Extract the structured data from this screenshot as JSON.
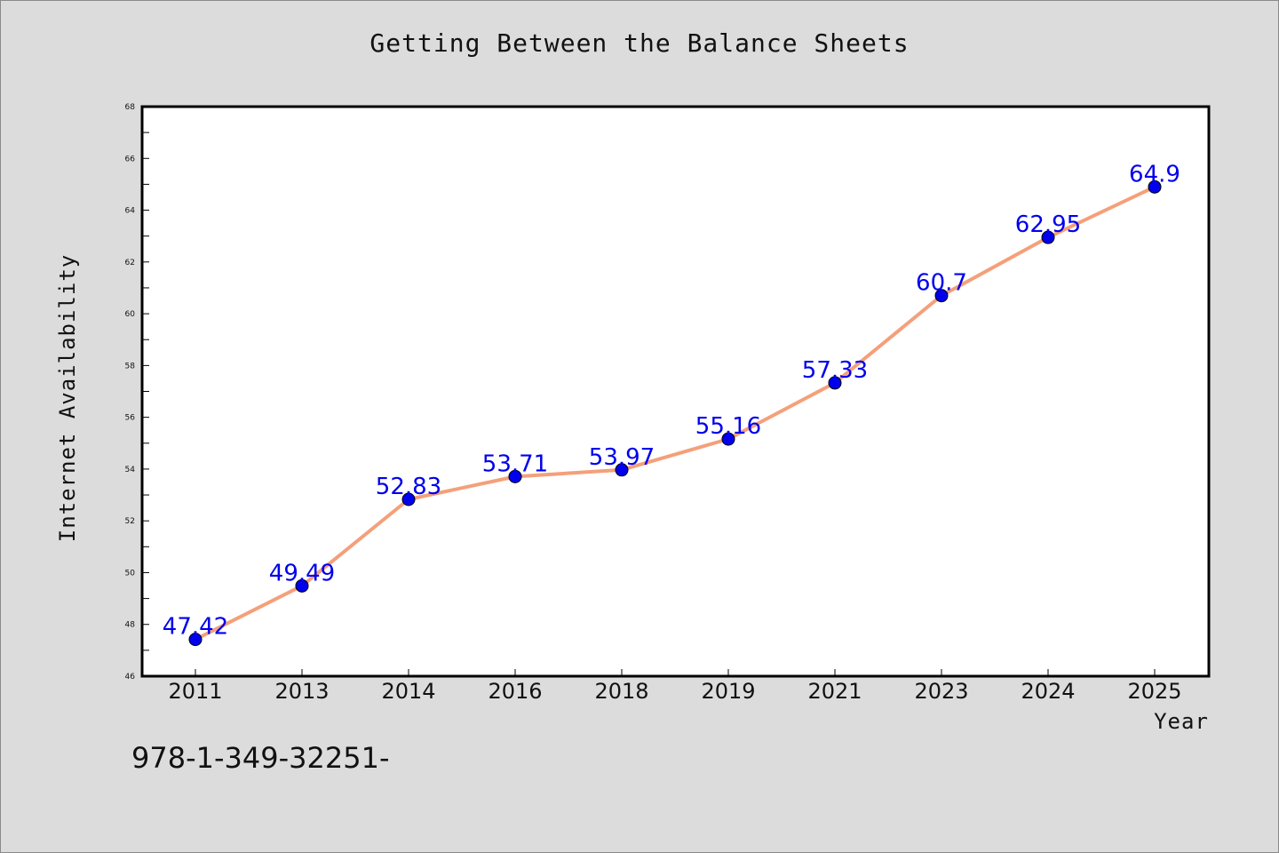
{
  "isbn_text": "978-1-349-32251-",
  "chart_data": {
    "type": "line",
    "title": "Getting Between the Balance Sheets",
    "xlabel": "Year",
    "ylabel": "Internet Availability",
    "categories": [
      "2011",
      "2013",
      "2014",
      "2016",
      "2018",
      "2019",
      "2021",
      "2023",
      "2024",
      "2025"
    ],
    "values": [
      47.42,
      49.49,
      52.83,
      53.71,
      53.97,
      55.16,
      57.33,
      60.7,
      62.95,
      64.9
    ],
    "data_labels": [
      "47.42",
      "49.49",
      "52.83",
      "53.71",
      "53.97",
      "55.16",
      "57.33",
      "60.7",
      "62.95",
      "64.9"
    ],
    "ylim": [
      46,
      68
    ],
    "yticks": [
      46,
      48,
      50,
      52,
      54,
      56,
      58,
      60,
      62,
      64,
      66,
      68
    ],
    "grid": false,
    "legend": "none",
    "line_color": "#f4a07a",
    "marker_color": "#0000ee",
    "label_color": "#0000ee"
  }
}
